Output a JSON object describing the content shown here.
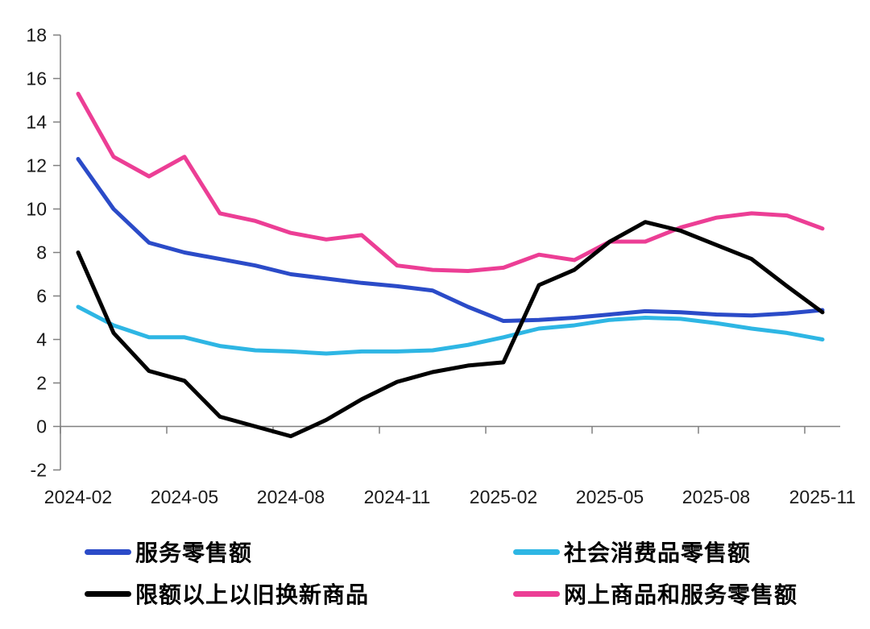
{
  "chart_data": {
    "type": "line",
    "title": "",
    "xlabel": "",
    "ylabel": "",
    "grid": false,
    "legend_position": "bottom",
    "ylim": [
      -2,
      18
    ],
    "y_ticks": [
      18,
      16,
      14,
      12,
      10,
      8,
      6,
      4,
      2,
      0,
      -2
    ],
    "x_tick_labels": [
      "2024-02",
      "2024-05",
      "2024-08",
      "2024-11",
      "2025-02",
      "2025-05",
      "2025-08",
      "2025-11"
    ],
    "categories": [
      "2024-02",
      "2024-03",
      "2024-04",
      "2024-05",
      "2024-06",
      "2024-07",
      "2024-08",
      "2024-09",
      "2024-10",
      "2024-11",
      "2024-12",
      "2025-01",
      "2025-02",
      "2025-03",
      "2025-04",
      "2025-05",
      "2025-06",
      "2025-07",
      "2025-08",
      "2025-09",
      "2025-10",
      "2025-11"
    ],
    "series": [
      {
        "name": "服务零售额",
        "color": "#2B4BC8",
        "values": [
          12.3,
          10.0,
          8.45,
          8.0,
          7.7,
          7.4,
          7.0,
          6.8,
          6.6,
          6.45,
          6.25,
          5.5,
          4.85,
          4.9,
          5.0,
          5.15,
          5.3,
          5.25,
          5.15,
          5.1,
          5.2,
          5.35
        ]
      },
      {
        "name": "社会消费品零售额",
        "color": "#2EB6E4",
        "values": [
          5.5,
          4.65,
          4.1,
          4.1,
          3.7,
          3.5,
          3.45,
          3.35,
          3.45,
          3.45,
          3.5,
          3.75,
          4.1,
          4.5,
          4.65,
          4.9,
          5.0,
          4.95,
          4.75,
          4.5,
          4.3,
          4.0
        ]
      },
      {
        "name": "限额以上以旧换新商品",
        "color": "#000000",
        "values": [
          8.0,
          4.3,
          2.55,
          2.1,
          0.45,
          0.0,
          -0.45,
          0.3,
          1.25,
          2.05,
          2.5,
          2.8,
          2.95,
          6.5,
          7.2,
          8.5,
          9.4,
          9.0,
          8.35,
          7.7,
          6.45,
          5.25
        ]
      },
      {
        "name": "网上商品和服务零售额",
        "color": "#EC3E95",
        "values": [
          15.3,
          12.4,
          11.5,
          12.4,
          9.8,
          9.45,
          8.9,
          8.6,
          8.8,
          7.4,
          7.2,
          7.15,
          7.3,
          7.9,
          7.65,
          8.5,
          8.5,
          9.15,
          9.6,
          9.8,
          9.7,
          9.1
        ]
      }
    ]
  }
}
